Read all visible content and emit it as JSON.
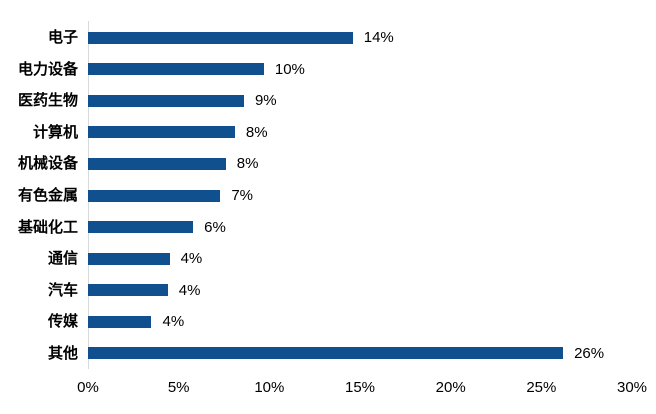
{
  "chart_data": {
    "type": "bar",
    "orientation": "horizontal",
    "title": "",
    "categories": [
      "电子",
      "电力设备",
      "医药生物",
      "计算机",
      "机械设备",
      "有色金属",
      "基础化工",
      "通信",
      "汽车",
      "传媒",
      "其他"
    ],
    "values": [
      14,
      10,
      9,
      8,
      8,
      7,
      6,
      4,
      4,
      4,
      26
    ],
    "value_labels": [
      "14%",
      "10%",
      "9%",
      "8%",
      "8%",
      "7%",
      "6%",
      "4%",
      "4%",
      "4%",
      "26%"
    ],
    "bar_lengths_est_pct": [
      14.6,
      9.7,
      8.6,
      8.1,
      7.6,
      7.3,
      5.8,
      4.5,
      4.4,
      3.5,
      26.2
    ],
    "xlim": [
      0,
      30
    ],
    "x_tick_labels": [
      "0%",
      "5%",
      "10%",
      "15%",
      "20%",
      "25%",
      "30%"
    ],
    "grid": false,
    "legend": false,
    "colors": {
      "bar": "#11508f",
      "axis_line": "#d9d9d9",
      "text": "#000000",
      "background": "#ffffff"
    }
  }
}
